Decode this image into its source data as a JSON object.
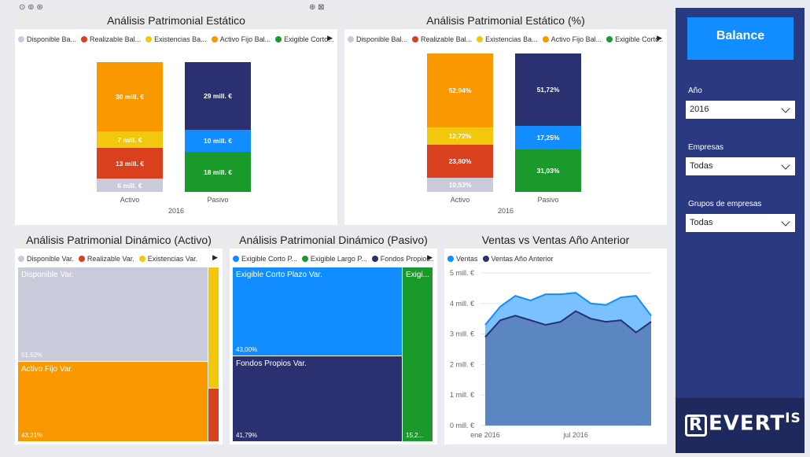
{
  "colors": {
    "disponible": "#c9cbdb",
    "realizable": "#d9401e",
    "existencias": "#f2c80f",
    "activo_fijo": "#fa9800",
    "exigible_corto": "#118dff",
    "exigible_largo": "#1a9a2a",
    "fondos_propios": "#2a3070",
    "ventas": "#118dff",
    "ventas_anterior": "#2a3070"
  },
  "panel1": {
    "title": "Análisis Patrimonial Estático",
    "legend": [
      "Disponible Ba...",
      "Realizable Bal...",
      "Existencias Ba...",
      "Activo Fijo Bal...",
      "Exigible Corto..."
    ],
    "x_labels": [
      "Activo",
      "Pasivo"
    ],
    "group_label": "2016",
    "activo_labels": [
      "30 mill. €",
      "7 mill. €",
      "13 mill. €",
      "6 mill. €"
    ],
    "pasivo_labels": [
      "29 mill. €",
      "10 mill. €",
      "18 mill. €"
    ]
  },
  "panel2": {
    "title": "Análisis Patrimonial Estático (%)",
    "legend": [
      "Disponible Bal...",
      "Realizable Bal...",
      "Existencias Ba...",
      "Activo Fijo Bal...",
      "Exigible Corto..."
    ],
    "x_labels": [
      "Activo",
      "Pasivo"
    ],
    "group_label": "2016",
    "activo_labels": [
      "52,94%",
      "12,72%",
      "23,80%",
      "10,53%"
    ],
    "pasivo_labels": [
      "51,72%",
      "17,25%",
      "31,03%"
    ]
  },
  "panel3": {
    "title": "Análisis Patrimonial Dinámico (Activo)",
    "legend": [
      "Disponible Var.",
      "Realizable Var.",
      "Existencias Var."
    ],
    "cells": [
      {
        "label": "Disponible Var.",
        "value": "51,52%"
      },
      {
        "label": "Activo Fijo Var.",
        "value": "43,21%"
      }
    ]
  },
  "panel4": {
    "title": "Análisis Patrimonial Dinámico (Pasivo)",
    "legend": [
      "Exigible Corto P...",
      "Exigible Largo P...",
      "Fondos Propios..."
    ],
    "cells": [
      {
        "label": "Exigible Corto Plazo Var.",
        "value": "43,00%"
      },
      {
        "label": "Fondos Propios Var.",
        "value": "41,79%"
      },
      {
        "label": "Exigi...",
        "value": "15,2..."
      }
    ]
  },
  "panel5": {
    "title": "Ventas vs Ventas Año Anterior",
    "legend": [
      "Ventas",
      "Ventas Año Anterior"
    ],
    "y_ticks": [
      "5 mill. €",
      "4 mill. €",
      "3 mill. €",
      "2 mill. €",
      "1 mill. €",
      "0 mill. €"
    ],
    "x_ticks": [
      "ene 2016",
      "jul 2016"
    ]
  },
  "chart_data": [
    {
      "type": "bar",
      "title": "Análisis Patrimonial Estático",
      "categories": [
        "Activo",
        "Pasivo"
      ],
      "series": [
        {
          "name": "Disponible Ba...",
          "values": [
            6,
            0
          ]
        },
        {
          "name": "Realizable Bal...",
          "values": [
            13,
            0
          ]
        },
        {
          "name": "Existencias Ba...",
          "values": [
            7,
            0
          ]
        },
        {
          "name": "Activo Fijo Bal...",
          "values": [
            30,
            0
          ]
        },
        {
          "name": "Exigible Corto...",
          "values": [
            0,
            10
          ]
        },
        {
          "values": [
            0,
            18
          ]
        },
        {
          "values": [
            0,
            29
          ]
        }
      ]
    },
    {
      "type": "bar",
      "title": "Análisis Patrimonial Estático (%)",
      "categories": [
        "Activo",
        "Pasivo"
      ],
      "series": [
        {
          "name": "Disponible Bal...",
          "values": [
            10.53,
            0
          ]
        },
        {
          "name": "Realizable Bal...",
          "values": [
            23.8,
            0
          ]
        },
        {
          "name": "Existencias Ba...",
          "values": [
            12.72,
            0
          ]
        },
        {
          "name": "Activo Fijo Bal...",
          "values": [
            52.94,
            0
          ]
        },
        {
          "name": "Exigible Corto...",
          "values": [
            0,
            17.25
          ]
        },
        {
          "values": [
            0,
            31.03
          ]
        },
        {
          "values": [
            0,
            51.72
          ]
        }
      ]
    },
    {
      "type": "area",
      "title": "Ventas vs Ventas Año Anterior",
      "ylim": [
        0,
        5
      ],
      "series": [
        {
          "name": "Ventas",
          "values": [
            3.3,
            3.9,
            4.25,
            4.1,
            4.3,
            4.3,
            4.35,
            4.0,
            3.95,
            4.2,
            4.25,
            3.6
          ]
        },
        {
          "name": "Ventas Año Anterior",
          "values": [
            2.9,
            3.45,
            3.6,
            3.45,
            3.3,
            3.4,
            3.75,
            3.5,
            3.4,
            3.45,
            3.05,
            3.4
          ]
        }
      ]
    }
  ],
  "sidebar": {
    "brand": "Balance",
    "filters": [
      {
        "label": "Año",
        "value": "2016"
      },
      {
        "label": "Empresas",
        "value": "Todas"
      },
      {
        "label": "Grupos de empresas",
        "value": "Todas"
      }
    ],
    "logo_r": "R",
    "logo_main": "EVERT",
    "logo_sup": "IS"
  }
}
